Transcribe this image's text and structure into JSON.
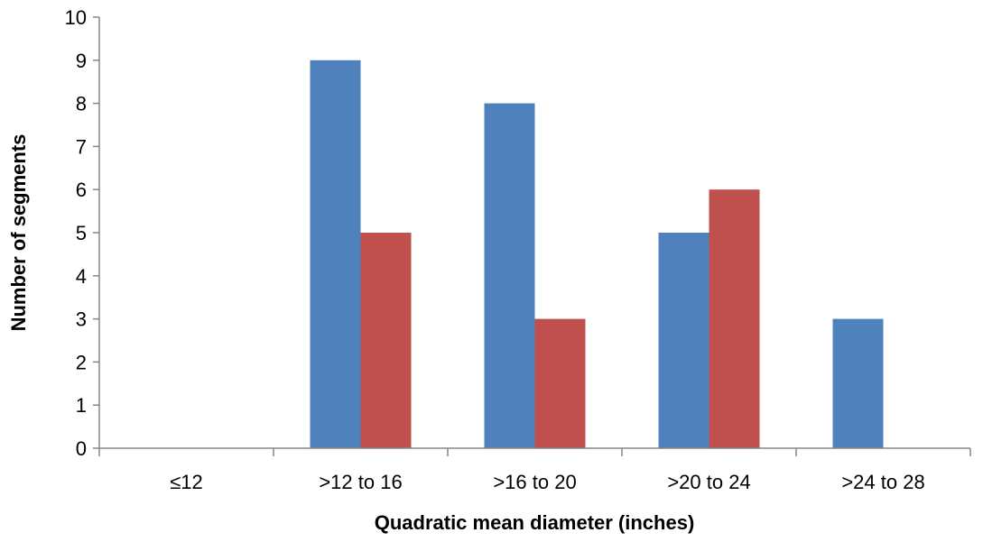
{
  "chart_data": {
    "type": "bar",
    "title": "",
    "xlabel": "Quadratic mean diameter (inches)",
    "ylabel": "Number of segments",
    "categories": [
      "≤12",
      ">12 to 16",
      ">16 to 20",
      ">20 to 24",
      ">24 to 28"
    ],
    "series": [
      {
        "values": [
          0,
          9,
          8,
          5,
          3
        ],
        "color": "#4F81BD"
      },
      {
        "values": [
          0,
          5,
          3,
          6,
          0
        ],
        "color": "#C0504D"
      }
    ],
    "ylim": [
      0,
      10
    ],
    "yticks": [
      "0",
      "1",
      "2",
      "3",
      "4",
      "5",
      "6",
      "7",
      "8",
      "9",
      "10"
    ],
    "grid": false,
    "legend": "none"
  }
}
